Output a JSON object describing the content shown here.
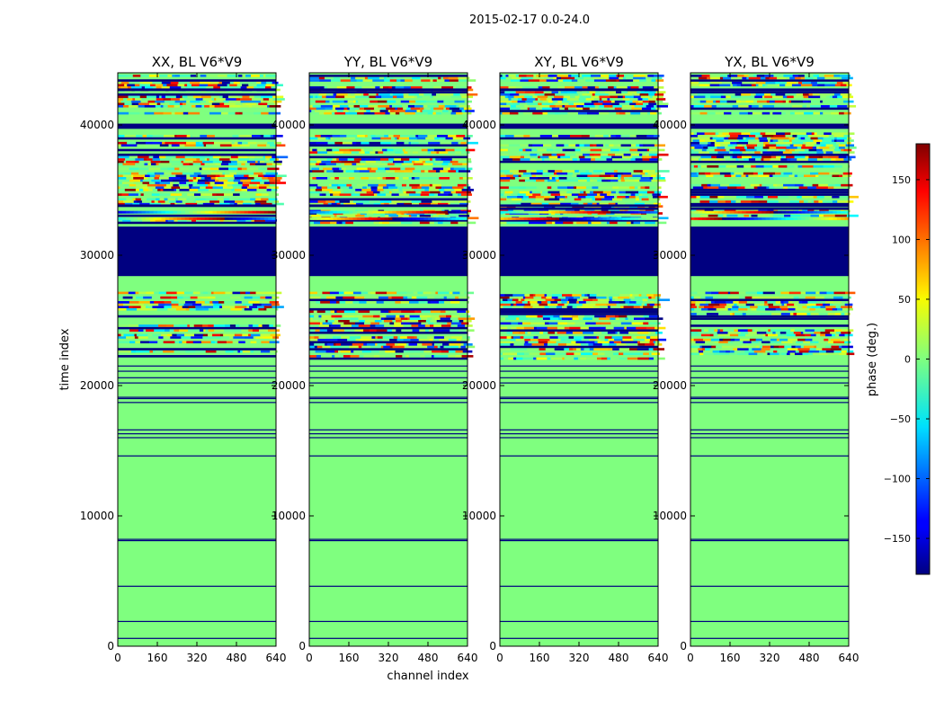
{
  "figure": {
    "suptitle": "2015-02-17 0.0-24.0"
  },
  "chart_data": {
    "type": "heatmap",
    "xlabel": "channel index",
    "ylabel": "time index",
    "xlim": [
      0,
      640
    ],
    "ylim": [
      0,
      44000
    ],
    "xticks": [
      0,
      160,
      320,
      480,
      640
    ],
    "yticks": [
      0,
      10000,
      20000,
      30000,
      40000
    ],
    "panels": [
      {
        "title": "XX, BL V6*V9",
        "seed": 11
      },
      {
        "title": "YY, BL V6*V9",
        "seed": 23
      },
      {
        "title": "XY, BL V6*V9",
        "seed": 37
      },
      {
        "title": "YX, BL V6*V9",
        "seed": 53
      }
    ],
    "dark_bands": [
      [
        28400,
        32200
      ],
      [
        39700,
        40100
      ],
      [
        42600,
        42800
      ],
      [
        33700,
        33900
      ]
    ],
    "noisy_bands": [
      [
        21800,
        27200
      ],
      [
        32400,
        39400
      ],
      [
        40800,
        43800
      ]
    ],
    "sparse_lines": [
      600,
      1900,
      4600,
      8100,
      8200,
      14600,
      16000,
      16300,
      16600,
      18700,
      19000,
      19100,
      20200,
      20600,
      21100,
      21500
    ],
    "colorbar": {
      "label": "phase (deg.)",
      "range": [
        -180,
        180
      ],
      "ticks": [
        150,
        100,
        50,
        0,
        -50,
        -100,
        -150
      ],
      "colormap": "jet"
    },
    "colors": {
      "zero_phase": "#7fff7f",
      "min_phase": "#000080",
      "max_phase": "#800000"
    }
  }
}
